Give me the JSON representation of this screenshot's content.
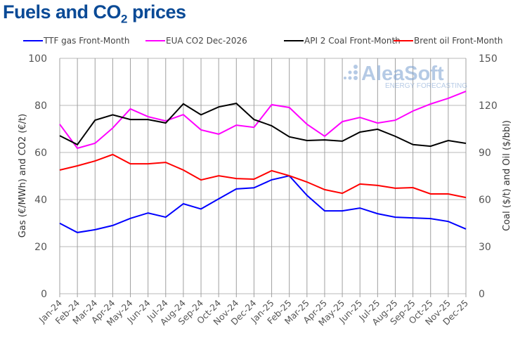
{
  "title_main": "Fuels and CO",
  "title_sub": "2",
  "title_end": " prices",
  "watermark": "AleaSoft ENERGY FORECASTING",
  "chart_data": {
    "type": "line",
    "title": "Fuels and CO2 prices",
    "categories": [
      "Jan-24",
      "Feb-24",
      "Mar-24",
      "Apr-24",
      "May-24",
      "Jun-24",
      "Jul-24",
      "Aug-24",
      "Sep-24",
      "Oct-24",
      "Nov-24",
      "Dec-24",
      "Jan-25",
      "Feb-25",
      "Mar-25",
      "Apr-25",
      "May-25",
      "Jun-25",
      "Jul-25",
      "Aug-25",
      "Sep-25",
      "Oct-25",
      "Nov-25",
      "Dec-25"
    ],
    "ylabel": "Gas (€/MWh) and CO2 (€/t)",
    "y2label": "Coal ($/t) and Oil ($/bbl)",
    "ylim": [
      0,
      100
    ],
    "y2lim": [
      0,
      150
    ],
    "yticks": [
      0,
      20,
      40,
      60,
      80,
      100
    ],
    "y2ticks": [
      0,
      30,
      60,
      90,
      120,
      150
    ],
    "grid": true,
    "legend_position": "top",
    "series": [
      {
        "name": "TTF gas Front-Month",
        "axis": "left",
        "color": "#0000ff",
        "values": [
          29.9,
          26.0,
          27.2,
          29.0,
          32.0,
          34.3,
          32.5,
          38.2,
          36.0,
          40.3,
          44.5,
          45.0,
          48.4,
          50.1,
          41.8,
          35.2,
          35.2,
          36.4,
          34.0,
          32.5,
          32.2,
          31.9,
          30.7,
          27.5
        ]
      },
      {
        "name": "EUA CO2 Dec-2026",
        "axis": "left",
        "color": "#ff00ff",
        "values": [
          72.0,
          61.8,
          63.9,
          70.4,
          78.5,
          75.2,
          73.4,
          76.1,
          69.6,
          67.8,
          71.6,
          70.7,
          80.3,
          79.1,
          72.0,
          66.9,
          73.1,
          74.9,
          72.5,
          73.7,
          77.6,
          80.6,
          83.0,
          86.0
        ]
      },
      {
        "name": "API 2 Coal Front-Month",
        "axis": "right",
        "color": "#000000",
        "values": [
          100.7,
          95.0,
          110.6,
          114.0,
          111.0,
          111.0,
          108.8,
          121.0,
          114.0,
          119.0,
          121.3,
          111.0,
          107.0,
          100.0,
          97.6,
          98.0,
          97.2,
          103.0,
          104.8,
          100.3,
          95.0,
          94.0,
          97.6,
          95.8
        ]
      },
      {
        "name": "Brent oil Front-Month",
        "axis": "right",
        "color": "#ff0000",
        "values": [
          78.8,
          81.5,
          84.6,
          88.7,
          82.8,
          82.8,
          83.7,
          78.8,
          72.5,
          75.2,
          73.4,
          73.0,
          78.4,
          75.2,
          71.2,
          66.3,
          64.0,
          69.9,
          69.0,
          67.2,
          67.6,
          63.6,
          63.6,
          61.3
        ]
      }
    ]
  }
}
